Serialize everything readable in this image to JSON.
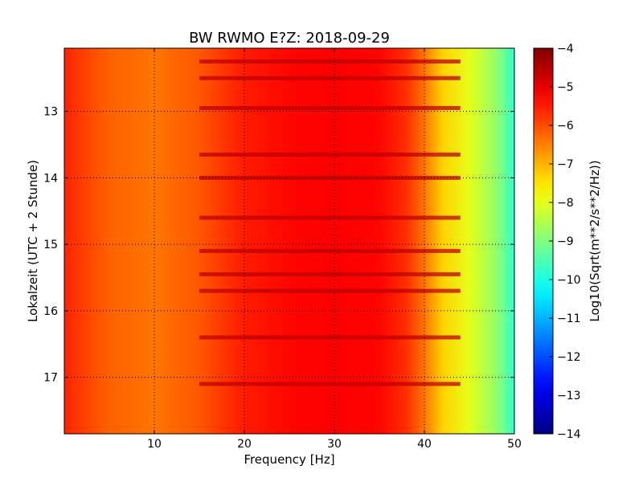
{
  "chart_data": {
    "type": "heatmap",
    "title": "BW RWMO E?Z: 2018-09-29",
    "xlabel": "Frequency [Hz]",
    "ylabel": "Lokalzeit (UTC + 2 Stunde)",
    "xlim": [
      0,
      50
    ],
    "ylim": [
      12.05,
      17.85
    ],
    "y_inverted": true,
    "x_ticks": [
      10,
      20,
      30,
      40,
      50
    ],
    "y_ticks": [
      13,
      14,
      15,
      16,
      17
    ],
    "grid": true,
    "colorbar": {
      "label": "Log10(Sqrt(m**2/s**2/Hz))",
      "range": [
        -14,
        -4
      ],
      "ticks": [
        -4,
        -5,
        -6,
        -7,
        -8,
        -9,
        -10,
        -11,
        -12,
        -13,
        -14
      ],
      "colormap": "jet"
    },
    "approx_level_by_frequency": {
      "frequency_hz": [
        0,
        5,
        10,
        15,
        20,
        25,
        30,
        35,
        38,
        40,
        42,
        45,
        48,
        50
      ],
      "log10_amplitude": [
        -5.6,
        -6.2,
        -6.4,
        -6.1,
        -5.5,
        -5.3,
        -5.2,
        -5.3,
        -5.7,
        -6.4,
        -7.3,
        -8.0,
        -8.8,
        -9.8
      ]
    },
    "strong_time_bands": [
      12.25,
      12.5,
      12.95,
      13.65,
      14.0,
      14.6,
      15.1,
      15.45,
      15.7,
      16.4,
      17.1
    ]
  }
}
